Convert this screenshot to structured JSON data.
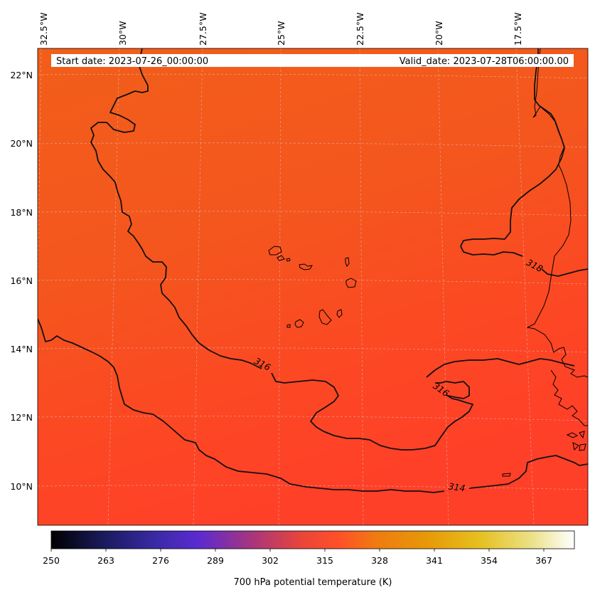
{
  "map": {
    "start_date_text": "Start date: 2023-07-26_00:00:00",
    "valid_date_text": "Valid_date: 2023-07-28T06:00:00.00",
    "lon_labels": [
      "32.5°W",
      "30°W",
      "27.5°W",
      "25°W",
      "22.5°W",
      "20°W",
      "17.5°W"
    ],
    "lat_labels": [
      "22°N",
      "20°N",
      "18°N",
      "16°N",
      "14°N",
      "12°N",
      "10°N"
    ],
    "contour_labels": [
      "316",
      "316",
      "318",
      "314"
    ],
    "field_colors": {
      "warm": "#f25a1c",
      "cool": "#ff4226"
    },
    "gridlines": true
  },
  "colorbar": {
    "label": "700 hPa potential temperature (K)",
    "ticks": [
      "250",
      "263",
      "276",
      "289",
      "302",
      "315",
      "328",
      "341",
      "354",
      "367"
    ],
    "colormap": "CMRmap"
  }
}
